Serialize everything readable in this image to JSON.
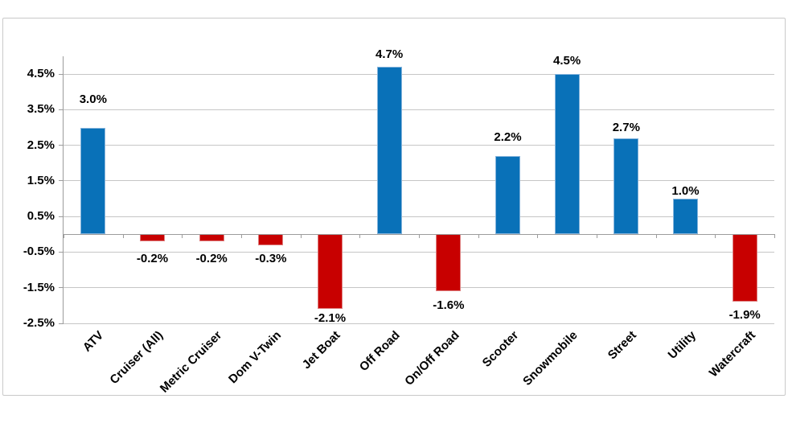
{
  "chart_data": {
    "type": "bar",
    "title": "",
    "xlabel": "",
    "ylabel": "",
    "categories": [
      "ATV",
      "Cruiser (All)",
      "Metric Cruiser",
      "Dom V-Twin",
      "Jet Boat",
      "Off Road",
      "On/Off Road",
      "Scooter",
      "Snowmobile",
      "Street",
      "Utility",
      "Watercraft"
    ],
    "values": [
      3.0,
      -0.2,
      -0.2,
      -0.3,
      -2.1,
      4.7,
      -1.6,
      2.2,
      4.5,
      2.7,
      1.0,
      -1.9
    ],
    "value_labels": [
      "3.0%",
      "-0.2%",
      "-0.2%",
      "-0.3%",
      "-2.1%",
      "4.7%",
      "-1.6%",
      "2.2%",
      "4.5%",
      "2.7%",
      "1.0%",
      "-1.9%"
    ],
    "y_ticks": [
      {
        "value": 4.5,
        "label": "4.5%"
      },
      {
        "value": 3.5,
        "label": "3.5%"
      },
      {
        "value": 2.5,
        "label": "2.5%"
      },
      {
        "value": 1.5,
        "label": "1.5%"
      },
      {
        "value": 0.5,
        "label": "0.5%"
      },
      {
        "value": -0.5,
        "label": "-0.5%"
      },
      {
        "value": -1.5,
        "label": "-1.5%"
      },
      {
        "value": -2.5,
        "label": "-2.5%"
      }
    ],
    "ylim": [
      -2.5,
      5.0
    ],
    "grid": true,
    "legend": false
  },
  "colors": {
    "positive": "#0971B8",
    "positive_edge": "#85B4DC",
    "negative": "#C80000",
    "negative_edge": "#DE8181",
    "gridline": "#C6C6C6",
    "axis_line": "#9C9C9C",
    "label_text": "#000000",
    "card_border": "#C9C9C9",
    "background": "#FFFFFF"
  }
}
